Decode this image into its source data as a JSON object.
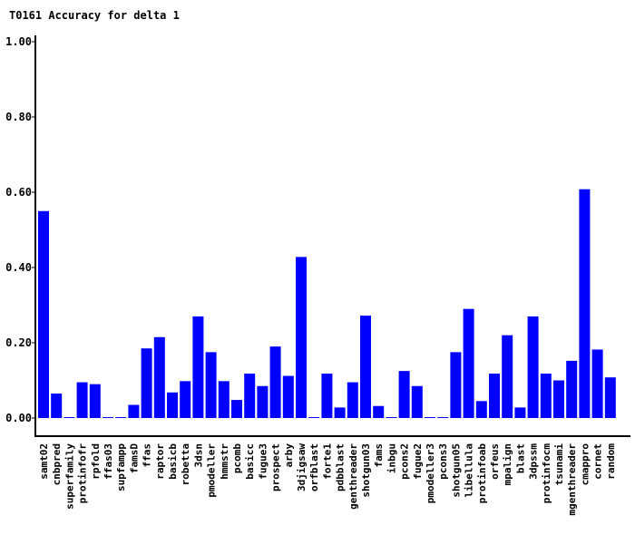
{
  "chart_data": {
    "type": "bar",
    "title": "T0161 Accuracy for delta 1",
    "xlabel": "",
    "ylabel": "",
    "ylim": [
      0,
      1
    ],
    "yticks": [
      "0.00",
      "0.20",
      "0.40",
      "0.60",
      "0.80",
      "1.00"
    ],
    "bar_color": "#0000ff",
    "grid": false,
    "categories": [
      "samt02",
      "cnbpred",
      "superfamily",
      "protinfofr",
      "rpfold",
      "ffas03",
      "supfampp",
      "famsD",
      "ffas",
      "raptor",
      "basicb",
      "robetta",
      "3dsn",
      "pmodeller",
      "hmmstr",
      "pcomb",
      "basicc",
      "fugue3",
      "prospect",
      "arby",
      "3djigsaw",
      "orfblast",
      "forte1",
      "pdbblast",
      "genthreader",
      "shotgun03",
      "fams",
      "inbgu",
      "pcons2",
      "fugue2",
      "pmodeller3",
      "pcons3",
      "shotgun05",
      "libellula",
      "protinfoab",
      "orfeus",
      "mpalign",
      "blast",
      "3dpssm",
      "protinfocm",
      "tsunami",
      "mgenthreader",
      "cmappro",
      "cornet",
      "random"
    ],
    "values": [
      0.55,
      0.065,
      0.0,
      0.095,
      0.09,
      0.0,
      0.0,
      0.035,
      0.185,
      0.215,
      0.068,
      0.098,
      0.27,
      0.175,
      0.098,
      0.048,
      0.118,
      0.085,
      0.19,
      0.112,
      0.428,
      0.0,
      0.118,
      0.028,
      0.095,
      0.272,
      0.032,
      0.0,
      0.125,
      0.085,
      0.0,
      0.0,
      0.175,
      0.29,
      0.045,
      0.118,
      0.22,
      0.028,
      0.27,
      0.118,
      0.1,
      0.152,
      0.608,
      0.182,
      0.108
    ]
  }
}
